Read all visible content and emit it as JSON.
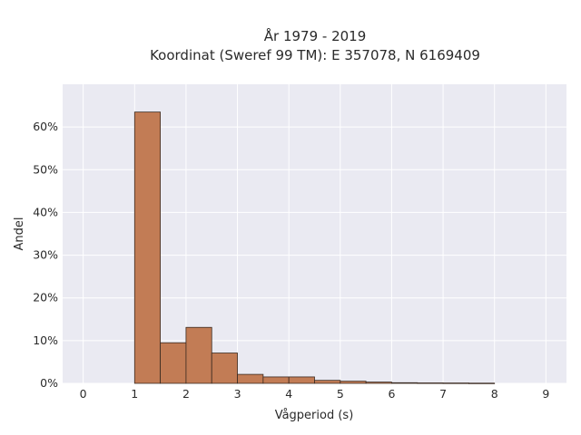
{
  "chart_data": {
    "type": "bar",
    "title_lines": [
      "År 1979 - 2019",
      "Koordinat (Sweref 99 TM): E 357078, N 6169409"
    ],
    "xlabel": "Vågperiod (s)",
    "ylabel": "Andel",
    "xlim": [
      -0.4,
      9.4
    ],
    "ylim": [
      0,
      0.7
    ],
    "x_ticks": [
      0,
      1,
      2,
      3,
      4,
      5,
      6,
      7,
      8,
      9
    ],
    "y_ticks": [
      0,
      0.1,
      0.2,
      0.3,
      0.4,
      0.5,
      0.6
    ],
    "y_tick_labels": [
      "0%",
      "10%",
      "20%",
      "30%",
      "40%",
      "50%",
      "60%"
    ],
    "bin_width": 0.5,
    "bins": [
      {
        "start": 1.0,
        "value": 0.635
      },
      {
        "start": 1.5,
        "value": 0.095
      },
      {
        "start": 2.0,
        "value": 0.131
      },
      {
        "start": 2.5,
        "value": 0.071
      },
      {
        "start": 3.0,
        "value": 0.021
      },
      {
        "start": 3.5,
        "value": 0.015
      },
      {
        "start": 4.0,
        "value": 0.015
      },
      {
        "start": 4.5,
        "value": 0.007
      },
      {
        "start": 5.0,
        "value": 0.005
      },
      {
        "start": 5.5,
        "value": 0.003
      },
      {
        "start": 6.0,
        "value": 0.0015
      },
      {
        "start": 6.5,
        "value": 0.001
      },
      {
        "start": 7.0,
        "value": 0.0008
      },
      {
        "start": 7.5,
        "value": 0.0005
      }
    ],
    "grid": true,
    "bar_color": "#c27c55",
    "bar_edge_color": "#3a2a20",
    "plot_background": "#eaeaf2",
    "grid_color": "#ffffff"
  }
}
